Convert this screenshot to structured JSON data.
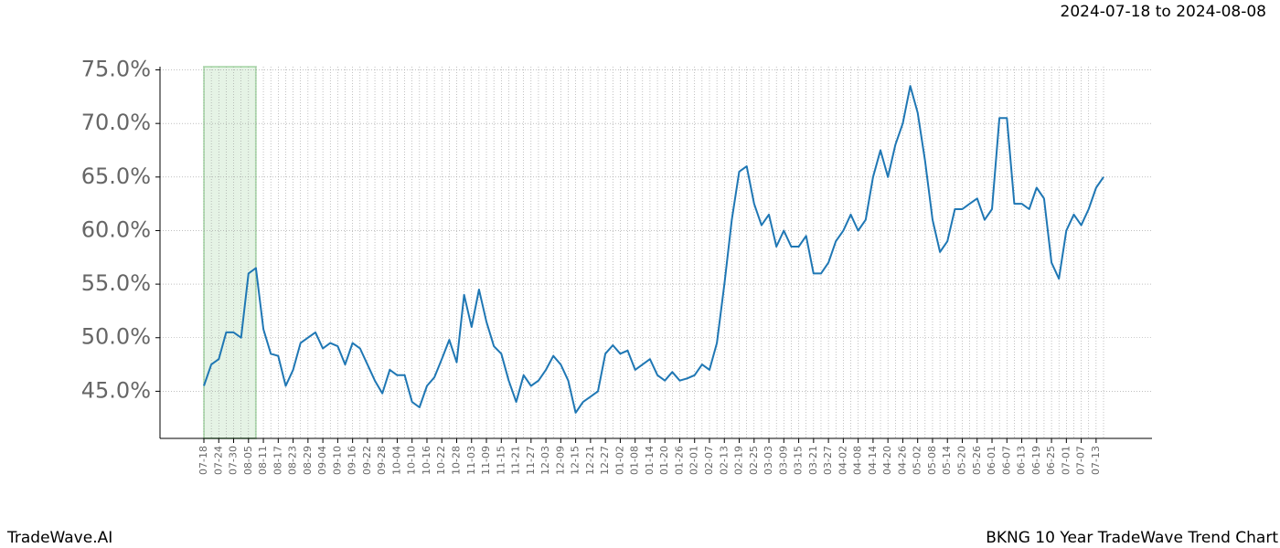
{
  "header": "2024-07-18 to 2024-08-08",
  "footer": {
    "left": "TradeWave.AI",
    "right": "BKNG 10 Year TradeWave Trend Chart"
  },
  "chart_data": {
    "type": "line",
    "categories": [
      "07-18",
      null,
      "07-24",
      null,
      "07-30",
      null,
      "08-05",
      null,
      "08-11",
      null,
      "08-17",
      null,
      "08-23",
      null,
      "08-29",
      null,
      "09-04",
      null,
      "09-10",
      null,
      "09-16",
      null,
      "09-22",
      null,
      "09-28",
      null,
      "10-04",
      null,
      "10-10",
      null,
      "10-16",
      null,
      "10-22",
      null,
      "10-28",
      null,
      "11-03",
      null,
      "11-09",
      null,
      "11-15",
      null,
      "11-21",
      null,
      "11-27",
      null,
      "12-03",
      null,
      "12-09",
      null,
      "12-15",
      null,
      "12-21",
      null,
      "12-27",
      null,
      "01-02",
      null,
      "01-08",
      null,
      "01-14",
      null,
      "01-20",
      null,
      "01-26",
      null,
      "02-01",
      null,
      "02-07",
      null,
      "02-13",
      null,
      "02-19",
      null,
      "02-25",
      null,
      "03-03",
      null,
      "03-09",
      null,
      "03-15",
      null,
      "03-21",
      null,
      "03-27",
      null,
      "04-02",
      null,
      "04-08",
      null,
      "04-14",
      null,
      "04-20",
      null,
      "04-26",
      null,
      "05-02",
      null,
      "05-08",
      null,
      "05-14",
      null,
      "05-20",
      null,
      "05-26",
      null,
      "06-01",
      null,
      "06-07",
      null,
      "06-13",
      null,
      "06-19",
      null,
      "06-25",
      null,
      "07-01",
      null,
      "07-07",
      null,
      "07-13",
      null
    ],
    "values": [
      45.5,
      47.5,
      48,
      50.5,
      50.5,
      50,
      56,
      56.5,
      50.8,
      48.5,
      48.3,
      45.5,
      47,
      49.5,
      50,
      50.5,
      49,
      49.5,
      49.2,
      47.5,
      49.5,
      49,
      47.5,
      46,
      44.8,
      47,
      46.5,
      46.5,
      44,
      43.5,
      45.5,
      46.3,
      48,
      49.8,
      47.7,
      54,
      51,
      54.5,
      51.5,
      49.2,
      48.5,
      46,
      44,
      46.5,
      45.5,
      46,
      47,
      48.3,
      47.5,
      46,
      43,
      44,
      44.5,
      45,
      48.5,
      49.3,
      48.5,
      48.8,
      47,
      47.5,
      48,
      46.5,
      46,
      46.8,
      46,
      46.2,
      46.5,
      47.5,
      47,
      49.5,
      55,
      61,
      65.5,
      66,
      62.5,
      60.5,
      61.5,
      58.5,
      60,
      58.5,
      58.5,
      59.5,
      56,
      56,
      57,
      59,
      60,
      61.5,
      60,
      61,
      65,
      67.5,
      65,
      68,
      70,
      73.5,
      71,
      66.5,
      61,
      58,
      59,
      62,
      62,
      62.5,
      63,
      61,
      62,
      70.5,
      70.5,
      62.5,
      62.5,
      62,
      64,
      63,
      57,
      55.5,
      60,
      61.5,
      60.5,
      62,
      64,
      65
    ],
    "color": "#1f77b4",
    "ylim": [
      40.6,
      75.3
    ],
    "yticks": [
      {
        "value": 45,
        "label": "45.0%"
      },
      {
        "value": 50,
        "label": "50.0%"
      },
      {
        "value": 55,
        "label": "55.0%"
      },
      {
        "value": 60,
        "label": "60.0%"
      },
      {
        "value": 65,
        "label": "65.0%"
      },
      {
        "value": 70,
        "label": "70.0%"
      },
      {
        "value": 75,
        "label": "75.0%"
      }
    ],
    "grid": true,
    "highlight": {
      "from": 0,
      "to": 7,
      "color": "#2ca02c"
    }
  }
}
